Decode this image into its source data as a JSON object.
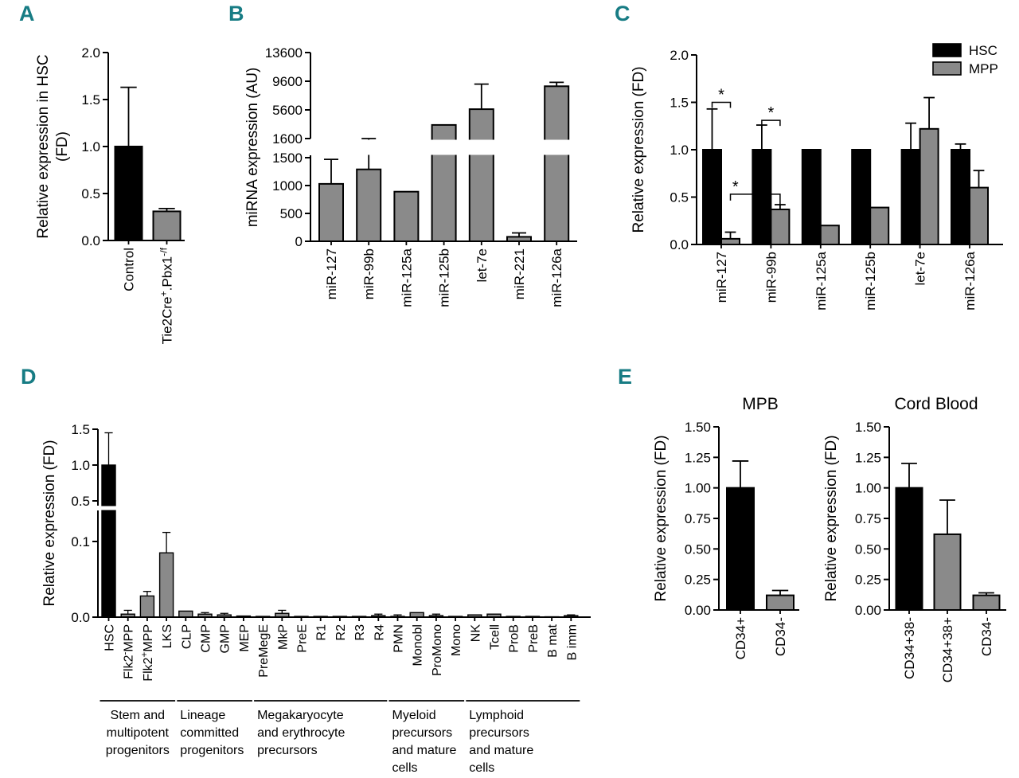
{
  "figure": {
    "letters": [
      "A",
      "B",
      "C",
      "D",
      "E"
    ],
    "letter_color": "#177C84",
    "background": "#FFFFFF",
    "bar_black": "#000000",
    "bar_gray": "#8A8A8A"
  },
  "chart_data": [
    {
      "panel": "A",
      "type": "bar",
      "title": "",
      "ylabel": "Relative expression in HSC (FD)",
      "ylabel_lines": [
        "Relative expression in HSC",
        "(FD)"
      ],
      "ylim": [
        0,
        2
      ],
      "grid": false,
      "yticks": [
        {
          "v": 0,
          "label": "0.0"
        },
        {
          "v": 0.5,
          "label": "0.5"
        },
        {
          "v": 1,
          "label": "1.0"
        },
        {
          "v": 1.5,
          "label": "1.5"
        },
        {
          "v": 2,
          "label": "2.0"
        }
      ],
      "categories": [
        "Control",
        "Tie2Cre^{+}.Pbx1^{-/f}"
      ],
      "values": [
        1.0,
        0.31
      ],
      "err_top": [
        1.63,
        0.34
      ],
      "bar_colors": [
        "#000000",
        "#8A8A8A"
      ]
    },
    {
      "panel": "B",
      "type": "bar",
      "title": "",
      "ylabel": "miRNA expression (AU)",
      "axis_break": true,
      "grid": false,
      "segments": [
        {
          "range": [
            0,
            1500
          ],
          "ticks": [
            {
              "v": 0,
              "label": "0"
            },
            {
              "v": 500,
              "label": "500"
            },
            {
              "v": 1000,
              "label": "1000"
            },
            {
              "v": 1500,
              "label": "1500"
            }
          ]
        },
        {
          "range": [
            1600,
            13600
          ],
          "ticks": [
            {
              "v": 1600,
              "label": "1600"
            },
            {
              "v": 5600,
              "label": "5600"
            },
            {
              "v": 9600,
              "label": "9600"
            },
            {
              "v": 13600,
              "label": "13600"
            }
          ]
        }
      ],
      "categories": [
        "miR-127",
        "miR-99b",
        "miR-125a",
        "miR-125b",
        "let-7e",
        "miR-221",
        "miR-126a"
      ],
      "values": [
        1030,
        1290,
        890,
        3500,
        5700,
        80,
        8900
      ],
      "err_top": [
        1470,
        1600,
        null,
        null,
        9200,
        150,
        9450
      ],
      "bar_colors": "#8A8A8A"
    },
    {
      "panel": "C",
      "type": "grouped_bar",
      "title": "",
      "ylabel": "Relative expression (FD)",
      "ylim": [
        0,
        2
      ],
      "grid": false,
      "legend_position": "top-right",
      "yticks": [
        {
          "v": 0,
          "label": "0.0"
        },
        {
          "v": 0.5,
          "label": "0.5"
        },
        {
          "v": 1,
          "label": "1.0"
        },
        {
          "v": 1.5,
          "label": "1.5"
        },
        {
          "v": 2,
          "label": "2.0"
        }
      ],
      "categories": [
        "miR-127",
        "miR-99b",
        "miR-125a",
        "miR-125b",
        "let-7e",
        "miR-126a"
      ],
      "series": [
        {
          "name": "HSC",
          "color": "#000000",
          "values": [
            1,
            1,
            1,
            1,
            1,
            1
          ],
          "err_top": [
            1.43,
            1.26,
            null,
            null,
            1.28,
            1.06
          ]
        },
        {
          "name": "MPP",
          "color": "#8A8A8A",
          "values": [
            0.06,
            0.37,
            0.2,
            0.39,
            1.22,
            0.6
          ],
          "err_top": [
            0.13,
            0.42,
            null,
            null,
            1.55,
            0.78
          ]
        }
      ],
      "significance": [
        {
          "label": "*",
          "category_a": "miR-127",
          "series_a": "HSC",
          "category_b": "miR-127",
          "series_b": "MPP",
          "bracket_y": 1.5
        },
        {
          "label": "*",
          "category_a": "miR-99b",
          "series_a": "HSC",
          "category_b": "miR-99b",
          "series_b": "MPP",
          "bracket_y": 1.31
        },
        {
          "label": "*",
          "category_a": "miR-127",
          "series_a": "MPP",
          "category_b": "miR-99b",
          "series_b": "MPP",
          "bracket_y": 0.53
        }
      ]
    },
    {
      "panel": "D",
      "type": "bar",
      "title": "",
      "ylabel": "Relative expression (FD)",
      "axis_break": true,
      "grid": false,
      "segments": [
        {
          "range": [
            0,
            0.1
          ],
          "ticks": [
            {
              "v": 0,
              "label": "0.0"
            },
            {
              "v": 0.1,
              "label": "0.1"
            }
          ]
        },
        {
          "range": [
            0.5,
            1.5
          ],
          "ticks": [
            {
              "v": 0.5,
              "label": "0.5"
            },
            {
              "v": 1,
              "label": "1.0"
            },
            {
              "v": 1.5,
              "label": "1.5"
            }
          ]
        }
      ],
      "categories": [
        "HSC",
        "Flk2^{-}MPP",
        "Flk2^{+}MPP",
        "LKS",
        "CLP",
        "CMP",
        "GMP",
        "MEP",
        "PreMegE",
        "MkP",
        "PreE",
        "R1",
        "R2",
        "R3",
        "R4",
        "PMN",
        "Monobl",
        "ProMono",
        "Mono",
        "NK",
        "Tcell",
        "ProB",
        "PreB",
        "B mat",
        "B imm"
      ],
      "values": [
        1.0,
        0.004,
        0.028,
        0.085,
        0.008,
        0.004,
        0.003,
        0.0015,
        0.001,
        0.005,
        0.001,
        0.001,
        0.001,
        0.001,
        0.002,
        0.001,
        0.006,
        0.002,
        0.001,
        0.003,
        0.004,
        0.001,
        0.001,
        0.0005,
        0.002
      ],
      "err_top": [
        1.45,
        0.009,
        0.034,
        0.112,
        null,
        0.006,
        0.005,
        null,
        null,
        0.009,
        null,
        null,
        null,
        null,
        0.004,
        0.003,
        null,
        0.004,
        null,
        null,
        null,
        null,
        null,
        null,
        0.003
      ],
      "bar_colors": {
        "default": "#8A8A8A",
        "HSC": "#000000"
      },
      "group_labels": [
        {
          "lines": [
            "Stem and",
            "multipotent",
            "progenitors"
          ],
          "from": "HSC",
          "to": "LKS",
          "align": "center"
        },
        {
          "lines": [
            "Lineage",
            "committed",
            "progenitors"
          ],
          "from": "CLP",
          "to": "MEP",
          "align": "left"
        },
        {
          "lines": [
            "Megakaryocyte",
            "and erythrocyte",
            "precursors"
          ],
          "from": "PreMegE",
          "to": "R4",
          "align": "left"
        },
        {
          "lines": [
            "Myeloid",
            "precursors",
            "and mature",
            "cells"
          ],
          "from": "PMN",
          "to": "Mono",
          "align": "left"
        },
        {
          "lines": [
            "Lymphoid",
            "precursors",
            "and mature",
            "cells"
          ],
          "from": "NK",
          "to": "B imm",
          "align": "left"
        }
      ]
    },
    {
      "panel": "E",
      "type": "bar",
      "title": "MPB",
      "ylabel": "Relative expression (FD)",
      "ylim": [
        0,
        1.5
      ],
      "grid": false,
      "yticks": [
        {
          "v": 0,
          "label": "0.00"
        },
        {
          "v": 0.25,
          "label": "0.25"
        },
        {
          "v": 0.5,
          "label": "0.50"
        },
        {
          "v": 0.75,
          "label": "0.75"
        },
        {
          "v": 1,
          "label": "1.00"
        },
        {
          "v": 1.25,
          "label": "1.25"
        },
        {
          "v": 1.5,
          "label": "1.50"
        }
      ],
      "categories": [
        "CD34+",
        "CD34-"
      ],
      "values": [
        1.0,
        0.12
      ],
      "err_top": [
        1.22,
        0.16
      ],
      "bar_colors": [
        "#000000",
        "#8A8A8A"
      ]
    },
    {
      "panel": "E",
      "type": "bar",
      "title": "Cord Blood",
      "ylabel": "Relative expression (FD)",
      "ylim": [
        0,
        1.5
      ],
      "grid": false,
      "yticks": [
        {
          "v": 0,
          "label": "0.00"
        },
        {
          "v": 0.25,
          "label": "0.25"
        },
        {
          "v": 0.5,
          "label": "0.50"
        },
        {
          "v": 0.75,
          "label": "0.75"
        },
        {
          "v": 1,
          "label": "1.00"
        },
        {
          "v": 1.25,
          "label": "1.25"
        },
        {
          "v": 1.5,
          "label": "1.50"
        }
      ],
      "categories": [
        "CD34+38-",
        "CD34+38+",
        "CD34-"
      ],
      "values": [
        1.0,
        0.62,
        0.12
      ],
      "err_top": [
        1.2,
        0.9,
        0.14
      ],
      "bar_colors": [
        "#000000",
        "#8A8A8A",
        "#8A8A8A"
      ]
    }
  ]
}
